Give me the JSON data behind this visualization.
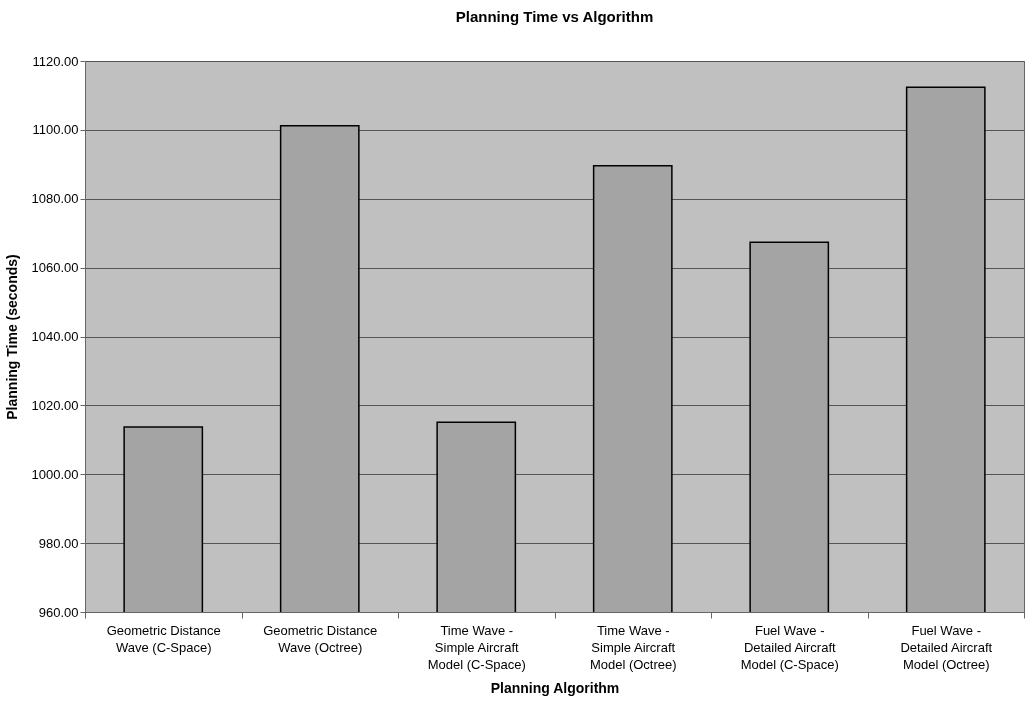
{
  "chart_data": {
    "type": "bar",
    "title": "Planning Time vs Algorithm",
    "xlabel": "Planning Algorithm",
    "ylabel": "Planning Time (seconds)",
    "categories": [
      "Geometric Distance\nWave (C-Space)",
      "Geometric Distance\nWave (Octree)",
      "Time Wave -\nSimple Aircraft\nModel (C-Space)",
      "Time Wave -\nSimple Aircraft\nModel (Octree)",
      "Fuel Wave -\nDetailed Aircraft\nModel (C-Space)",
      "Fuel Wave -\nDetailed Aircraft\nModel (Octree)"
    ],
    "values": [
      1013.7,
      1101.2,
      1015.1,
      1089.6,
      1067.4,
      1112.4
    ],
    "color": "#a4a4a4",
    "ylim": [
      960,
      1120
    ],
    "yticks": [
      {
        "value": 960,
        "label": "960.00"
      },
      {
        "value": 980,
        "label": "980.00"
      },
      {
        "value": 1000,
        "label": "1000.00"
      },
      {
        "value": 1020,
        "label": "1020.00"
      },
      {
        "value": 1040,
        "label": "1040.00"
      },
      {
        "value": 1060,
        "label": "1060.00"
      },
      {
        "value": 1080,
        "label": "1080.00"
      },
      {
        "value": 1100,
        "label": "1100.00"
      },
      {
        "value": 1120,
        "label": "1120.00"
      }
    ],
    "grid": "y"
  }
}
